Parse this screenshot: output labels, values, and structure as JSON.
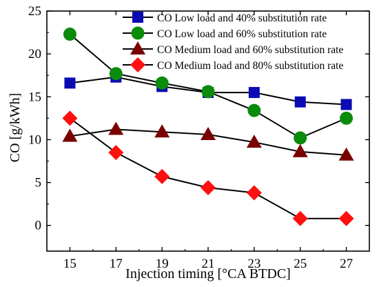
{
  "chart_data": {
    "type": "line",
    "xlabel": "Injection timing [°CA BTDC]",
    "ylabel": "CO [g/kWh]",
    "x": [
      15,
      17,
      19,
      21,
      23,
      25,
      27
    ],
    "xlim": [
      14,
      28
    ],
    "ylim": [
      -3,
      25
    ],
    "xticks": [
      15,
      17,
      19,
      21,
      23,
      25,
      27
    ],
    "yticks": [
      0,
      5,
      10,
      15,
      20,
      25
    ],
    "grid": false,
    "legend_position": "top-right",
    "series": [
      {
        "name": "CO Low load and 40% substitution rate",
        "marker": "square",
        "color": "#0b0bb3",
        "values": [
          16.6,
          17.3,
          16.2,
          15.5,
          15.5,
          14.4,
          14.1
        ]
      },
      {
        "name": "CO Low load and 60% substitution rate",
        "marker": "circle",
        "color": "#0a8c0a",
        "values": [
          22.3,
          17.7,
          16.6,
          15.6,
          13.4,
          10.2,
          12.5
        ]
      },
      {
        "name": "CO Medium load and 60% substitution rate",
        "marker": "triangle",
        "color": "#7a0000",
        "values": [
          10.4,
          11.2,
          10.9,
          10.6,
          9.7,
          8.6,
          8.2
        ]
      },
      {
        "name": "CO Medium load and 80% substitution rate",
        "marker": "diamond",
        "color": "#ff1010",
        "values": [
          12.5,
          8.5,
          5.7,
          4.4,
          3.8,
          0.8,
          0.8
        ]
      }
    ]
  }
}
